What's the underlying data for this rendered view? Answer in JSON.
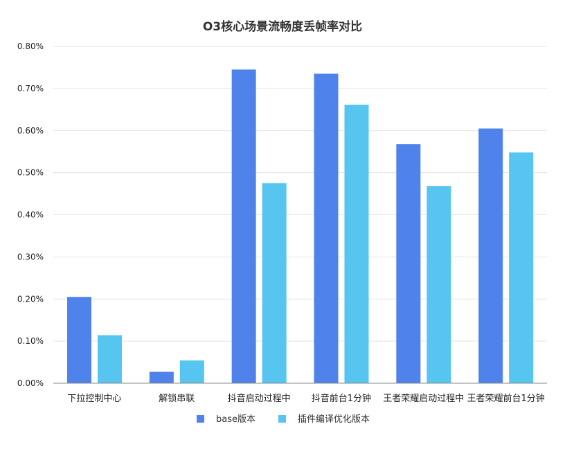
{
  "chart_data": {
    "type": "bar",
    "title": "O3核心场景流畅度丢帧率对比",
    "xlabel": "",
    "ylabel": "",
    "categories": [
      "下拉控制中心",
      "解锁串联",
      "抖音启动过程中",
      "抖音前台1分钟",
      "王者荣耀启动过程中",
      "王者荣耀前台1分钟"
    ],
    "series": [
      {
        "name": "base版本",
        "color": "#5082ec",
        "values": [
          0.205,
          0.027,
          0.745,
          0.735,
          0.568,
          0.605
        ]
      },
      {
        "name": "插件编译优化版本",
        "color": "#56c5f0",
        "values": [
          0.114,
          0.054,
          0.475,
          0.661,
          0.468,
          0.548
        ]
      }
    ],
    "ylim": [
      0,
      0.8
    ],
    "yticks": [
      0,
      0.1,
      0.2,
      0.3,
      0.4,
      0.5,
      0.6,
      0.7,
      0.8
    ],
    "ytick_labels": [
      "0.00%",
      "0.10%",
      "0.20%",
      "0.30%",
      "0.40%",
      "0.50%",
      "0.60%",
      "0.70%",
      "0.80%"
    ],
    "grid": true,
    "legend_position": "bottom"
  }
}
